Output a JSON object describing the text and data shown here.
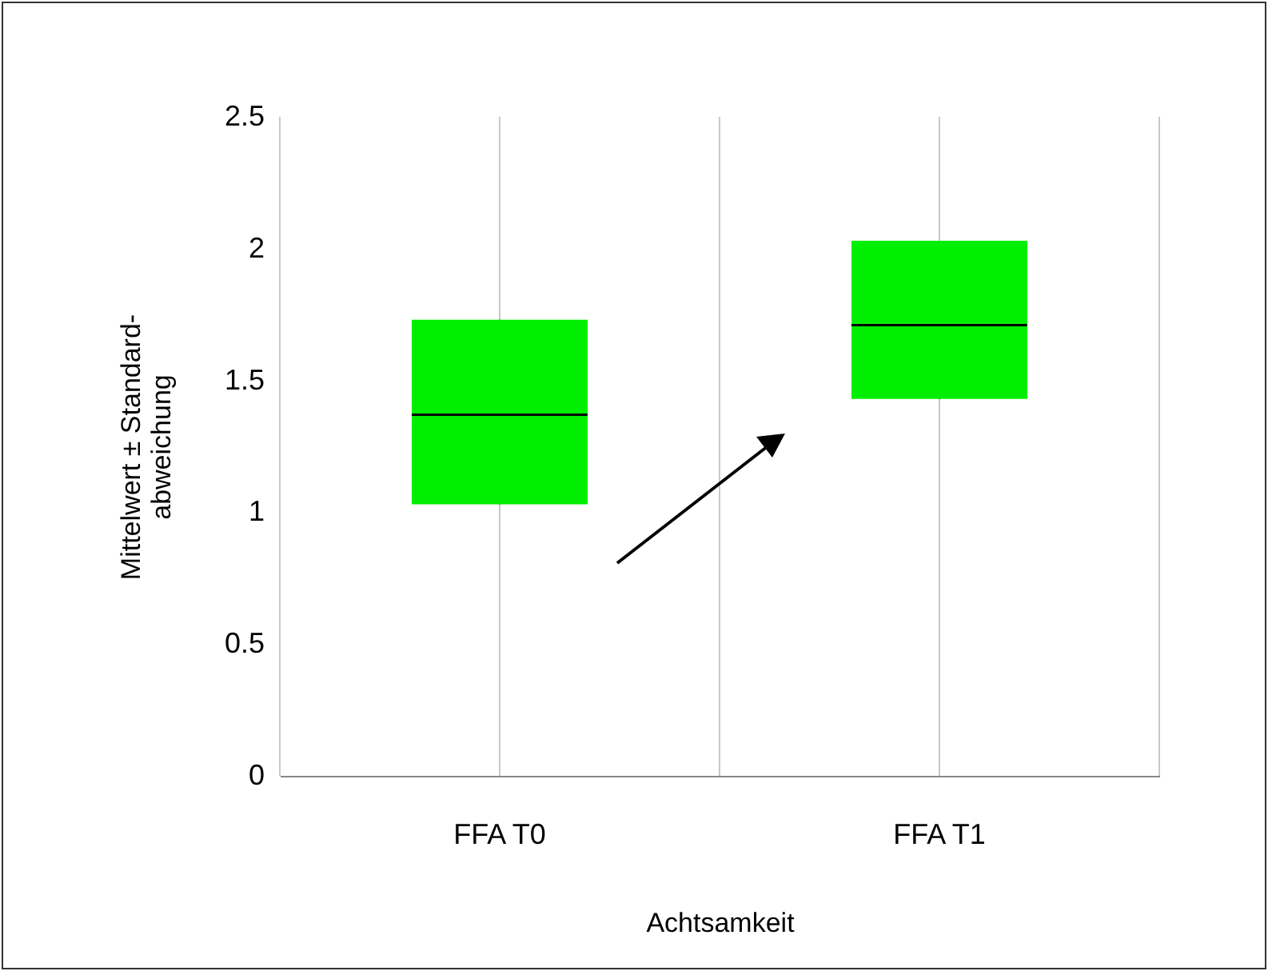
{
  "chart_data": {
    "type": "box",
    "xlabel": "Achtsamkeit",
    "ylabel": "Mittelwert ± Standard-\nabweichung",
    "categories": [
      "FFA T0",
      "FFA T1"
    ],
    "series": [
      {
        "color": "#00ee00",
        "boxes": [
          {
            "low": 1.03,
            "q1": 1.03,
            "median": 1.37,
            "q3": 1.73,
            "high": 1.73
          },
          {
            "low": 1.43,
            "q1": 1.43,
            "median": 1.71,
            "q3": 2.03,
            "high": 2.03
          }
        ]
      }
    ],
    "ylim": [
      0,
      2.5
    ],
    "yticks": [
      0,
      0.5,
      1,
      1.5,
      2,
      2.5
    ],
    "grid": "x"
  }
}
